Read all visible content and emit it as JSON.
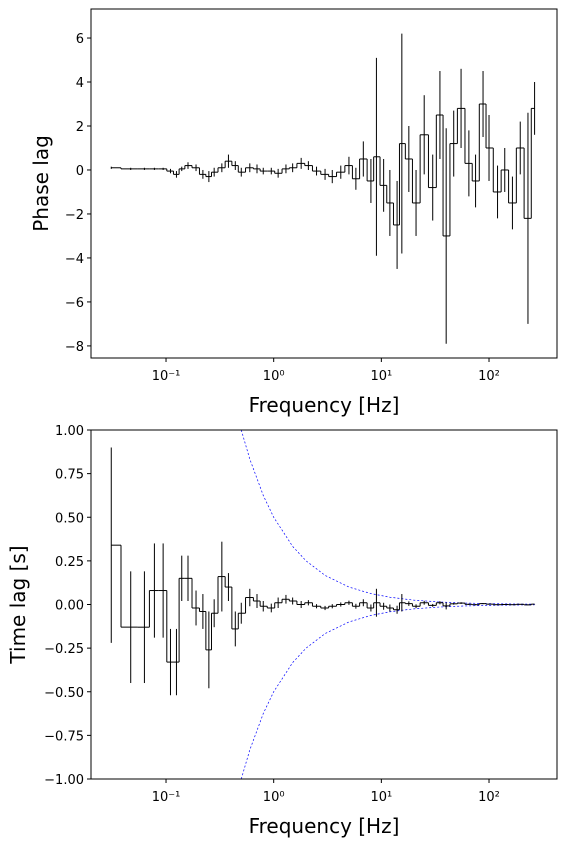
{
  "chart_data": [
    {
      "type": "step",
      "ylabel": "Phase lag",
      "xlabel": "Frequency [Hz]",
      "xscale": "log",
      "xlim": [
        0.0201,
        428
      ],
      "ylim": [
        -8.55,
        7.32
      ],
      "xticks": [
        {
          "value": 0.1,
          "label": "10⁻¹"
        },
        {
          "value": 1,
          "label": "10⁰"
        },
        {
          "value": 10,
          "label": "10¹"
        },
        {
          "value": 100,
          "label": "10²"
        }
      ],
      "yticks": [
        {
          "value": -8,
          "label": "−8"
        },
        {
          "value": -6,
          "label": "−6"
        },
        {
          "value": -4,
          "label": "−4"
        },
        {
          "value": -2,
          "label": "−2"
        },
        0,
        2,
        4,
        6
      ],
      "series": [
        {
          "color": "#000000",
          "x": [
            0.031,
            0.047,
            0.063,
            0.078,
            0.094,
            0.11,
            0.125,
            0.14,
            0.16,
            0.19,
            0.22,
            0.25,
            0.28,
            0.33,
            0.38,
            0.44,
            0.5,
            0.6,
            0.7,
            0.8,
            0.95,
            1.1,
            1.3,
            1.5,
            1.8,
            2.1,
            2.5,
            3,
            3.5,
            4.2,
            5,
            5.8,
            6.8,
            8,
            9,
            10.5,
            12,
            14,
            15.5,
            18,
            21,
            25,
            30,
            35,
            40,
            47,
            55,
            65,
            75,
            88,
            100,
            120,
            140,
            165,
            195,
            230,
            265
          ],
          "values": [
            0.1,
            0.05,
            0.05,
            0.05,
            0.05,
            -0.05,
            -0.2,
            0.05,
            0.2,
            0.1,
            -0.2,
            -0.3,
            -0.1,
            0.1,
            0.4,
            0.2,
            -0.1,
            0.1,
            0.05,
            -0.05,
            -0.05,
            -0.15,
            0.05,
            0.1,
            0.3,
            0.2,
            -0.05,
            -0.2,
            -0.3,
            -0.1,
            0.2,
            -0.4,
            0.5,
            -0.5,
            0.6,
            -0.7,
            -1.5,
            -2.5,
            1.2,
            0.5,
            -1.5,
            1.6,
            -0.8,
            2.5,
            -3,
            1.2,
            2.8,
            0.3,
            -0.5,
            3,
            1,
            -1,
            0,
            -1.5,
            1,
            -2.2,
            2.8
          ],
          "errors": [
            0.05,
            0.05,
            0.05,
            0.05,
            0.05,
            0.1,
            0.15,
            0.1,
            0.15,
            0.15,
            0.2,
            0.25,
            0.2,
            0.2,
            0.3,
            0.2,
            0.2,
            0.2,
            0.2,
            0.15,
            0.15,
            0.2,
            0.2,
            0.2,
            0.25,
            0.2,
            0.2,
            0.25,
            0.3,
            0.3,
            0.4,
            0.5,
            0.8,
            1,
            4.5,
            1.2,
            1.5,
            2,
            5,
            1.5,
            1.5,
            1.8,
            1.5,
            2,
            4.9,
            1.5,
            1.8,
            1.5,
            1.2,
            1.5,
            1.5,
            1.2,
            1,
            1.2,
            1.2,
            4.8,
            1.2
          ]
        }
      ]
    },
    {
      "type": "step",
      "ylabel": "Time lag [s]",
      "xlabel": "Frequency [Hz]",
      "xscale": "log",
      "xlim": [
        0.0201,
        428
      ],
      "ylim": [
        -1,
        1
      ],
      "xticks": [
        {
          "value": 0.1,
          "label": "10⁻¹"
        },
        {
          "value": 1,
          "label": "10⁰"
        },
        {
          "value": 10,
          "label": "10¹"
        },
        {
          "value": 100,
          "label": "10²"
        }
      ],
      "yticks": [
        {
          "value": -1,
          "label": "−1.00"
        },
        {
          "value": -0.75,
          "label": "−0.75"
        },
        {
          "value": -0.5,
          "label": "−0.50"
        },
        {
          "value": -0.25,
          "label": "−0.25"
        },
        {
          "value": 0,
          "label": "0.00"
        },
        {
          "value": 0.25,
          "label": "0.25"
        },
        {
          "value": 0.5,
          "label": "0.50"
        },
        {
          "value": 0.75,
          "label": "0.75"
        },
        {
          "value": 1,
          "label": "1.00"
        }
      ],
      "series": [
        {
          "color": "#000000",
          "x": [
            0.031,
            0.047,
            0.063,
            0.078,
            0.094,
            0.11,
            0.125,
            0.14,
            0.16,
            0.19,
            0.22,
            0.25,
            0.28,
            0.33,
            0.38,
            0.44,
            0.5,
            0.6,
            0.7,
            0.8,
            0.95,
            1.1,
            1.3,
            1.5,
            1.8,
            2.1,
            2.5,
            3,
            3.5,
            4.2,
            5,
            5.8,
            6.8,
            8,
            9,
            10.5,
            12,
            14,
            15.5,
            18,
            21,
            25,
            30,
            35,
            40,
            47,
            55,
            65,
            75,
            88,
            100,
            120,
            140,
            165,
            195,
            230,
            265
          ],
          "values": [
            0.34,
            -0.13,
            -0.13,
            0.08,
            0.08,
            -0.33,
            -0.33,
            0.15,
            0.15,
            -0.02,
            -0.04,
            -0.26,
            -0.05,
            0.16,
            0.1,
            -0.14,
            -0.05,
            0.04,
            0.02,
            -0.01,
            -0.02,
            0.01,
            0.03,
            0.02,
            0.0,
            0.01,
            -0.01,
            -0.02,
            -0.01,
            0.0,
            0.01,
            -0.01,
            0.01,
            -0.02,
            0.01,
            -0.01,
            -0.02,
            -0.03,
            0.01,
            0.005,
            -0.01,
            0.01,
            -0.005,
            0.01,
            -0.008,
            0.004,
            0.008,
            0.001,
            -0.001,
            0.005,
            0.002,
            -0.001,
            0,
            -0.001,
            0.001,
            -0.002,
            0.002
          ],
          "errors": [
            0.56,
            0.32,
            0.32,
            0.27,
            0.27,
            0.19,
            0.19,
            0.13,
            0.13,
            0.1,
            0.1,
            0.22,
            0.08,
            0.2,
            0.08,
            0.1,
            0.06,
            0.05,
            0.04,
            0.03,
            0.025,
            0.03,
            0.025,
            0.02,
            0.02,
            0.015,
            0.012,
            0.012,
            0.012,
            0.012,
            0.012,
            0.014,
            0.02,
            0.02,
            0.08,
            0.02,
            0.02,
            0.023,
            0.05,
            0.013,
            0.011,
            0.011,
            0.008,
            0.009,
            0.02,
            0.005,
            0.005,
            0.004,
            0.003,
            0.003,
            0.003,
            0.002,
            0.001,
            0.001,
            0.001,
            0.003,
            0.001
          ]
        }
      ],
      "reference_curves": [
        {
          "color": "#0000ff",
          "x": [
            0.5,
            0.6,
            0.8,
            1,
            1.5,
            2,
            3,
            5,
            8,
            12,
            20,
            35,
            60,
            100,
            180,
            265
          ],
          "values": [
            1,
            0.833,
            0.625,
            0.5,
            0.333,
            0.25,
            0.167,
            0.1,
            0.0625,
            0.0417,
            0.025,
            0.0143,
            0.0083,
            0.005,
            0.0028,
            0.0019
          ]
        },
        {
          "color": "#0000ff",
          "x": [
            0.5,
            0.6,
            0.8,
            1,
            1.5,
            2,
            3,
            5,
            8,
            12,
            20,
            35,
            60,
            100,
            180,
            265
          ],
          "values": [
            -1,
            -0.833,
            -0.625,
            -0.5,
            -0.333,
            -0.25,
            -0.167,
            -0.1,
            -0.0625,
            -0.0417,
            -0.025,
            -0.0143,
            -0.0083,
            -0.005,
            -0.0028,
            -0.0019
          ]
        }
      ]
    }
  ]
}
